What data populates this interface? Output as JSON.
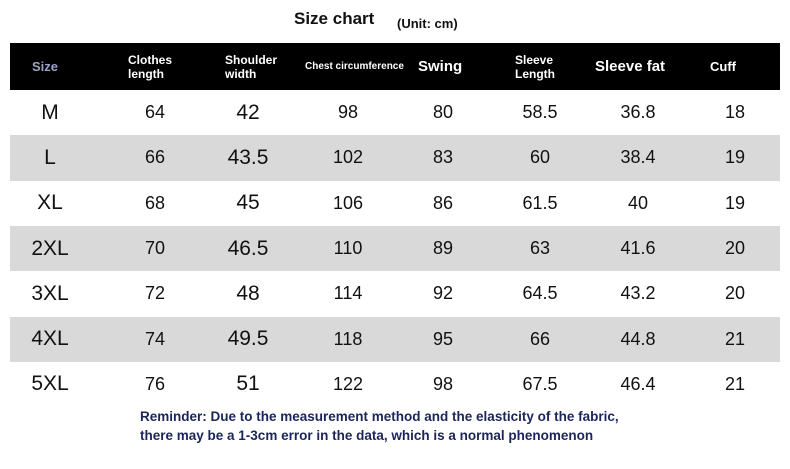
{
  "header": {
    "title": "Size chart",
    "unit": "(Unit: cm)"
  },
  "table": {
    "columns": [
      "Size",
      "Clothes length",
      "Shoulder width",
      "Chest circumference",
      "Swing",
      "Sleeve Length",
      "Sleeve fat",
      "Cuff"
    ],
    "rows": [
      [
        "M",
        64,
        42,
        98,
        80,
        58.5,
        36.8,
        18
      ],
      [
        "L",
        66,
        43.5,
        102,
        83,
        60,
        38.4,
        19
      ],
      [
        "XL",
        68,
        45,
        106,
        86,
        61.5,
        40,
        19
      ],
      [
        "2XL",
        70,
        46.5,
        110,
        89,
        63,
        41.6,
        20
      ],
      [
        "3XL",
        72,
        48,
        114,
        92,
        64.5,
        43.2,
        20
      ],
      [
        "4XL",
        74,
        49.5,
        118,
        95,
        66,
        44.8,
        21
      ],
      [
        "5XL",
        76,
        51,
        122,
        98,
        67.5,
        46.4,
        21
      ]
    ]
  },
  "reminder": [
    "Reminder: Due to the measurement method and the elasticity of the fabric,",
    "there may be a 1-3cm error in the data, which is a normal phenomenon"
  ]
}
